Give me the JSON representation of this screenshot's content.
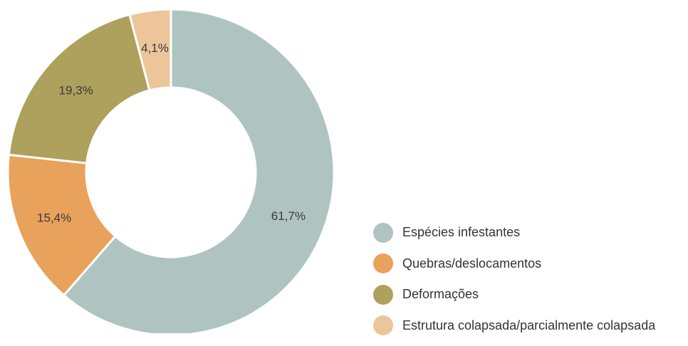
{
  "chart_data": {
    "type": "pie",
    "donut": true,
    "title": "",
    "categories": [
      "Espécies infestantes",
      "Quebras/deslocamentos",
      "Deformações",
      "Estrutura colapsada/parcialmente colapsada"
    ],
    "values": [
      61.7,
      15.4,
      19.3,
      4.1
    ],
    "labels": [
      "61,7%",
      "15,4%",
      "19,3%",
      "4,1%"
    ],
    "colors": [
      "#afc4c1",
      "#e8a25c",
      "#aea05d",
      "#ecc59a"
    ],
    "legend_position": "bottom-right",
    "start_angle": "top, clockwise"
  }
}
